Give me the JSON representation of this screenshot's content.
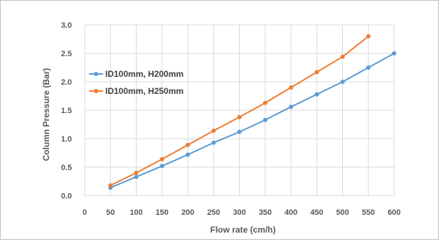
{
  "chart_data": {
    "type": "line",
    "title": "",
    "xlabel": "Flow rate (cm/h)",
    "ylabel": "Column Pressure (Bar)",
    "xlim": [
      0,
      600
    ],
    "ylim": [
      0,
      3.0
    ],
    "x_ticks": [
      "0",
      "50",
      "100",
      "150",
      "200",
      "250",
      "300",
      "350",
      "400",
      "450",
      "500",
      "550",
      "600"
    ],
    "y_ticks": [
      "0.0",
      "0.5",
      "1.0",
      "1.5",
      "2.0",
      "2.5",
      "3.0"
    ],
    "grid": true,
    "legend_position": "upper-left",
    "series": [
      {
        "name": "ID100mm, H200mm",
        "color": "#5b9bd5",
        "x": [
          50,
          100,
          150,
          200,
          250,
          300,
          350,
          400,
          450,
          500,
          550,
          600
        ],
        "y": [
          0.14,
          0.33,
          0.52,
          0.72,
          0.93,
          1.12,
          1.33,
          1.56,
          1.78,
          2.0,
          2.25,
          2.5
        ]
      },
      {
        "name": "ID100mm, H250mm",
        "color": "#ed7d31",
        "x": [
          50,
          100,
          150,
          200,
          250,
          300,
          350,
          400,
          450,
          500,
          550
        ],
        "y": [
          0.18,
          0.4,
          0.64,
          0.89,
          1.14,
          1.38,
          1.63,
          1.9,
          2.17,
          2.44,
          2.8
        ]
      }
    ]
  }
}
